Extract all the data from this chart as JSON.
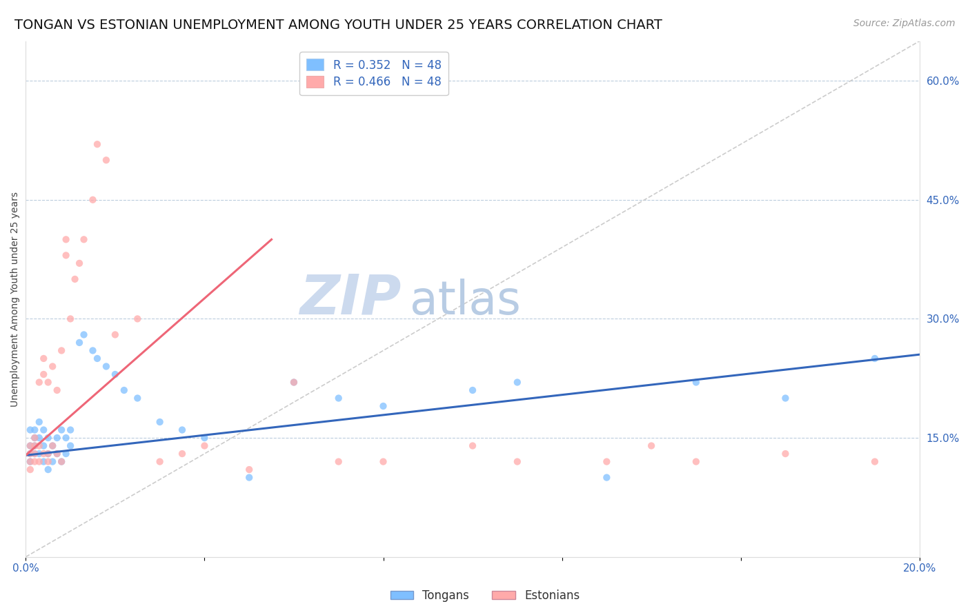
{
  "title": "TONGAN VS ESTONIAN UNEMPLOYMENT AMONG YOUTH UNDER 25 YEARS CORRELATION CHART",
  "source": "Source: ZipAtlas.com",
  "ylabel": "Unemployment Among Youth under 25 years",
  "xlim": [
    0.0,
    0.2
  ],
  "ylim": [
    0.0,
    0.65
  ],
  "yticks_right": [
    0.15,
    0.3,
    0.45,
    0.6
  ],
  "ytick_right_labels": [
    "15.0%",
    "30.0%",
    "45.0%",
    "60.0%"
  ],
  "R_tongan": 0.352,
  "R_estonian": 0.466,
  "N": 48,
  "tongan_color": "#7fbfff",
  "estonian_color": "#ffaaaa",
  "tongan_line_color": "#3366bb",
  "estonian_line_color": "#ee6677",
  "ref_line_color": "#cccccc",
  "watermark_zip": "ZIP",
  "watermark_atlas": "atlas",
  "watermark_color_zip": "#c8d8ee",
  "watermark_color_atlas": "#b0c8e8",
  "title_fontsize": 14,
  "label_fontsize": 10,
  "tick_fontsize": 11,
  "source_fontsize": 10,
  "tongan_x": [
    0.001,
    0.001,
    0.001,
    0.001,
    0.002,
    0.002,
    0.002,
    0.002,
    0.003,
    0.003,
    0.003,
    0.004,
    0.004,
    0.004,
    0.005,
    0.005,
    0.005,
    0.006,
    0.006,
    0.007,
    0.007,
    0.008,
    0.008,
    0.009,
    0.009,
    0.01,
    0.01,
    0.012,
    0.013,
    0.015,
    0.016,
    0.018,
    0.02,
    0.022,
    0.025,
    0.03,
    0.035,
    0.04,
    0.05,
    0.06,
    0.07,
    0.08,
    0.1,
    0.11,
    0.13,
    0.15,
    0.17,
    0.19
  ],
  "tongan_y": [
    0.13,
    0.14,
    0.12,
    0.16,
    0.13,
    0.15,
    0.14,
    0.16,
    0.13,
    0.15,
    0.17,
    0.12,
    0.14,
    0.16,
    0.13,
    0.15,
    0.11,
    0.12,
    0.14,
    0.13,
    0.15,
    0.12,
    0.16,
    0.13,
    0.15,
    0.14,
    0.16,
    0.27,
    0.28,
    0.26,
    0.25,
    0.24,
    0.23,
    0.21,
    0.2,
    0.17,
    0.16,
    0.15,
    0.1,
    0.22,
    0.2,
    0.19,
    0.21,
    0.22,
    0.1,
    0.22,
    0.2,
    0.25
  ],
  "estonian_x": [
    0.001,
    0.001,
    0.001,
    0.001,
    0.002,
    0.002,
    0.002,
    0.002,
    0.003,
    0.003,
    0.003,
    0.004,
    0.004,
    0.004,
    0.005,
    0.005,
    0.005,
    0.006,
    0.006,
    0.007,
    0.007,
    0.008,
    0.008,
    0.009,
    0.009,
    0.01,
    0.011,
    0.012,
    0.013,
    0.015,
    0.016,
    0.018,
    0.02,
    0.025,
    0.03,
    0.035,
    0.04,
    0.05,
    0.06,
    0.07,
    0.08,
    0.1,
    0.11,
    0.13,
    0.14,
    0.15,
    0.17,
    0.19
  ],
  "estonian_y": [
    0.12,
    0.14,
    0.11,
    0.13,
    0.13,
    0.15,
    0.12,
    0.14,
    0.12,
    0.22,
    0.14,
    0.25,
    0.13,
    0.23,
    0.13,
    0.22,
    0.12,
    0.14,
    0.24,
    0.13,
    0.21,
    0.12,
    0.26,
    0.4,
    0.38,
    0.3,
    0.35,
    0.37,
    0.4,
    0.45,
    0.52,
    0.5,
    0.28,
    0.3,
    0.12,
    0.13,
    0.14,
    0.11,
    0.22,
    0.12,
    0.12,
    0.14,
    0.12,
    0.12,
    0.14,
    0.12,
    0.13,
    0.12
  ],
  "tongan_trend_x0": 0.0,
  "tongan_trend_y0": 0.128,
  "tongan_trend_x1": 0.2,
  "tongan_trend_y1": 0.255,
  "estonian_trend_x0": 0.0,
  "estonian_trend_y0": 0.128,
  "estonian_trend_x1": 0.055,
  "estonian_trend_y1": 0.4
}
